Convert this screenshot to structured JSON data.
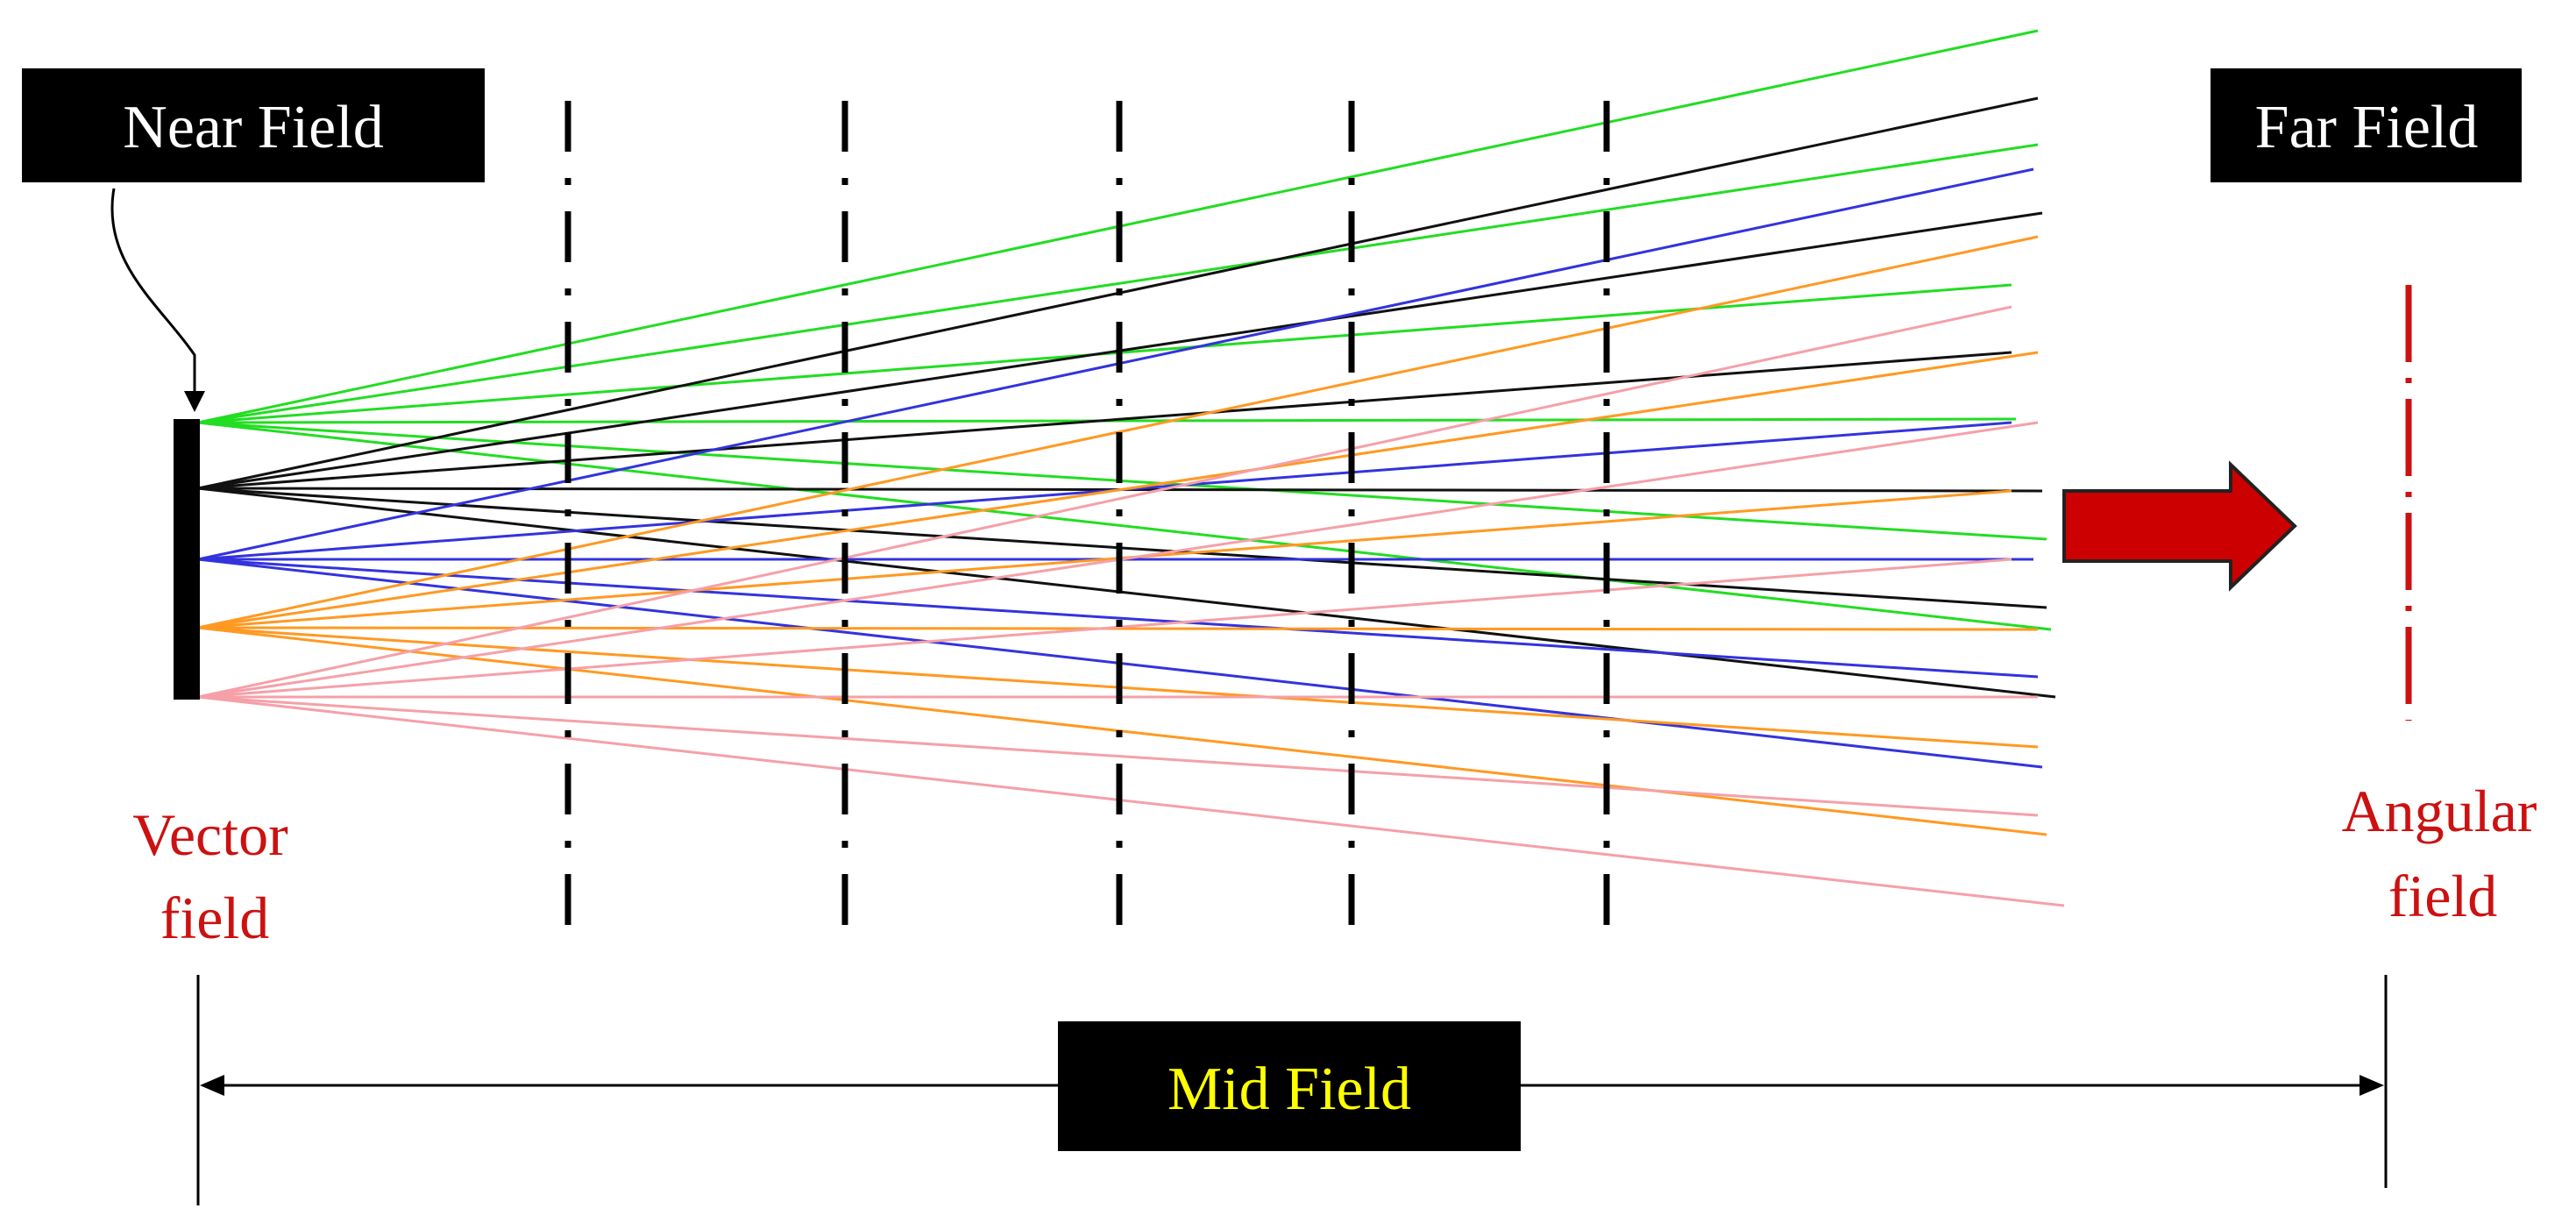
{
  "labels": {
    "near_field": "Near Field",
    "far_field": "Far Field",
    "mid_field": "Mid Field",
    "vector_field_line1": "Vector",
    "vector_field_line2": "field",
    "angular_field_line1": "Angular",
    "angular_field_line2": "field"
  },
  "colors": {
    "box_fill": "#000000",
    "box_text": "#ffffff",
    "mid_field_text": "#ffff00",
    "field_label": "#cc1111",
    "arrow_fill": "#cc0000",
    "far_field_line": "#cc1111",
    "ray_green": "#22dd22",
    "ray_black": "#111111",
    "ray_blue": "#3333dd",
    "ray_orange": "#ff9922",
    "ray_pink": "#f5a0a8"
  }
}
